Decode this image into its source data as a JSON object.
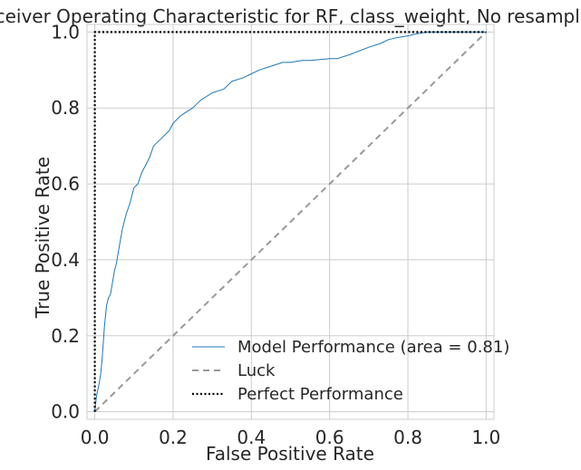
{
  "chart_data": {
    "type": "line",
    "title": "Receiver Operating Characteristic for RF, class_weight, No resampling",
    "xlabel": "False Positive Rate",
    "ylabel": "True Positive Rate",
    "xlim": [
      -0.02,
      1.02
    ],
    "ylim": [
      -0.02,
      1.02
    ],
    "xticks": [
      "0.0",
      "0.2",
      "0.4",
      "0.6",
      "0.8",
      "1.0"
    ],
    "yticks": [
      "0.0",
      "0.2",
      "0.4",
      "0.6",
      "0.8",
      "1.0"
    ],
    "grid": true,
    "legend_position": "lower-right",
    "series": [
      {
        "name": "Model Performance (area = 0.81)",
        "style": "solid",
        "color": "#1f77b4",
        "x": [
          0.0,
          0.002,
          0.004,
          0.006,
          0.008,
          0.01,
          0.012,
          0.015,
          0.018,
          0.02,
          0.025,
          0.03,
          0.035,
          0.04,
          0.045,
          0.05,
          0.055,
          0.06,
          0.065,
          0.07,
          0.075,
          0.08,
          0.09,
          0.1,
          0.11,
          0.12,
          0.13,
          0.14,
          0.15,
          0.17,
          0.19,
          0.2,
          0.22,
          0.25,
          0.27,
          0.3,
          0.33,
          0.35,
          0.38,
          0.4,
          0.42,
          0.45,
          0.48,
          0.5,
          0.53,
          0.55,
          0.6,
          0.62,
          0.65,
          0.7,
          0.73,
          0.75,
          0.77,
          0.8,
          0.82,
          0.85,
          0.88,
          0.9,
          0.93,
          0.95,
          0.97,
          1.0
        ],
        "y": [
          0.0,
          0.02,
          0.04,
          0.05,
          0.06,
          0.07,
          0.08,
          0.1,
          0.13,
          0.16,
          0.23,
          0.28,
          0.3,
          0.31,
          0.34,
          0.37,
          0.39,
          0.42,
          0.45,
          0.48,
          0.5,
          0.52,
          0.55,
          0.59,
          0.6,
          0.63,
          0.65,
          0.67,
          0.7,
          0.72,
          0.74,
          0.76,
          0.78,
          0.8,
          0.82,
          0.84,
          0.85,
          0.87,
          0.88,
          0.89,
          0.9,
          0.91,
          0.92,
          0.92,
          0.925,
          0.925,
          0.93,
          0.93,
          0.94,
          0.96,
          0.97,
          0.98,
          0.985,
          0.99,
          0.995,
          1.0,
          1.0,
          1.0,
          1.0,
          1.0,
          1.0,
          1.0
        ]
      },
      {
        "name": "Luck",
        "style": "dashed",
        "color": "#999999",
        "x": [
          0.0,
          1.0
        ],
        "y": [
          0.0,
          1.0
        ]
      },
      {
        "name": "Perfect Performance",
        "style": "dotted",
        "color": "#000000",
        "x": [
          0.0,
          0.0,
          1.0
        ],
        "y": [
          0.0,
          1.0,
          1.0
        ]
      }
    ]
  }
}
